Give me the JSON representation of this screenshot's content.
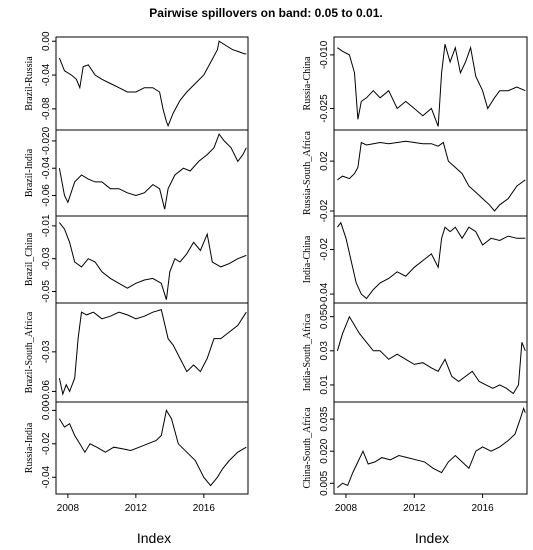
{
  "title": "Pairwise spillovers on band: 0.05 to 0.01.",
  "xlabel": "Index",
  "x_ticks": [
    2008,
    2012,
    2016
  ],
  "x_range": [
    2007.3,
    2018.6
  ],
  "chart_data": [
    {
      "type": "line",
      "ylabel": "Brazil-Russia",
      "ylim": [
        -0.105,
        0.005
      ],
      "yticks": [
        0.0,
        -0.04,
        -0.08
      ],
      "yticklabels": [
        "0.00",
        "-0.04",
        "-0.08"
      ],
      "x": [
        2007.5,
        2007.8,
        2008.2,
        2008.5,
        2008.7,
        2008.9,
        2009.2,
        2009.6,
        2010.0,
        2010.5,
        2011.0,
        2011.5,
        2012.0,
        2012.5,
        2013.0,
        2013.4,
        2013.6,
        2013.8,
        2013.9,
        2014.2,
        2014.6,
        2015.0,
        2015.5,
        2016.0,
        2016.4,
        2016.8,
        2016.9,
        2017.3,
        2017.7,
        2018.0,
        2018.4,
        2018.5
      ],
      "values": [
        -0.02,
        -0.035,
        -0.04,
        -0.045,
        -0.055,
        -0.03,
        -0.028,
        -0.04,
        -0.045,
        -0.05,
        -0.055,
        -0.06,
        -0.06,
        -0.055,
        -0.055,
        -0.06,
        -0.08,
        -0.095,
        -0.1,
        -0.085,
        -0.07,
        -0.06,
        -0.05,
        -0.04,
        -0.025,
        -0.01,
        0.0,
        -0.005,
        -0.01,
        -0.012,
        -0.015,
        -0.015
      ]
    },
    {
      "type": "line",
      "ylabel": "Brazil-India",
      "ylim": [
        -0.075,
        -0.012
      ],
      "yticks": [
        -0.02,
        -0.04,
        -0.06
      ],
      "yticklabels": [
        "-0.020",
        "-0.04",
        "-0.06"
      ],
      "x": [
        2007.5,
        2007.8,
        2008.0,
        2008.4,
        2008.8,
        2009.2,
        2009.6,
        2010.0,
        2010.5,
        2011.0,
        2011.5,
        2012.0,
        2012.5,
        2013.0,
        2013.4,
        2013.7,
        2013.9,
        2014.3,
        2014.8,
        2015.2,
        2015.7,
        2016.2,
        2016.6,
        2016.9,
        2017.2,
        2017.6,
        2018.0,
        2018.3,
        2018.5
      ],
      "values": [
        -0.04,
        -0.06,
        -0.065,
        -0.05,
        -0.045,
        -0.048,
        -0.05,
        -0.05,
        -0.055,
        -0.055,
        -0.058,
        -0.06,
        -0.058,
        -0.052,
        -0.055,
        -0.07,
        -0.055,
        -0.045,
        -0.04,
        -0.042,
        -0.035,
        -0.03,
        -0.025,
        -0.015,
        -0.02,
        -0.025,
        -0.035,
        -0.03,
        -0.025
      ]
    },
    {
      "type": "line",
      "ylabel": "Brazil_China",
      "ylim": [
        -0.057,
        -0.004
      ],
      "yticks": [
        -0.01,
        -0.03,
        -0.05
      ],
      "yticklabels": [
        "-0.01",
        "-0.03",
        "-0.05"
      ],
      "x": [
        2007.5,
        2007.8,
        2008.1,
        2008.4,
        2008.8,
        2009.2,
        2009.6,
        2010.0,
        2010.5,
        2011.0,
        2011.5,
        2012.0,
        2012.5,
        2013.0,
        2013.5,
        2013.8,
        2014.0,
        2014.3,
        2014.6,
        2015.0,
        2015.4,
        2015.8,
        2016.2,
        2016.5,
        2017.0,
        2017.5,
        2018.0,
        2018.5
      ],
      "values": [
        -0.008,
        -0.012,
        -0.02,
        -0.032,
        -0.035,
        -0.03,
        -0.032,
        -0.038,
        -0.042,
        -0.045,
        -0.048,
        -0.045,
        -0.043,
        -0.042,
        -0.045,
        -0.055,
        -0.038,
        -0.03,
        -0.032,
        -0.027,
        -0.02,
        -0.025,
        -0.015,
        -0.032,
        -0.035,
        -0.033,
        -0.03,
        -0.028
      ]
    },
    {
      "type": "line",
      "ylabel": "Brazil-South_Africa",
      "ylim": [
        -0.068,
        0.007
      ],
      "yticks": [
        -0.03,
        -0.06
      ],
      "yticklabels": [
        "-0.03",
        "-0.06"
      ],
      "x": [
        2007.5,
        2007.7,
        2007.9,
        2008.1,
        2008.4,
        2008.6,
        2008.8,
        2009.1,
        2009.5,
        2010.0,
        2010.5,
        2011.0,
        2011.5,
        2012.0,
        2012.5,
        2013.0,
        2013.5,
        2013.9,
        2014.2,
        2014.6,
        2015.0,
        2015.4,
        2015.8,
        2016.2,
        2016.6,
        2017.0,
        2017.5,
        2018.0,
        2018.5
      ],
      "values": [
        -0.05,
        -0.062,
        -0.055,
        -0.06,
        -0.05,
        -0.02,
        0.0,
        -0.002,
        0.0,
        -0.005,
        -0.003,
        0.0,
        -0.002,
        -0.005,
        -0.003,
        0.0,
        0.002,
        -0.02,
        -0.025,
        -0.035,
        -0.045,
        -0.04,
        -0.045,
        -0.035,
        -0.02,
        -0.02,
        -0.015,
        -0.01,
        0.0
      ]
    },
    {
      "type": "line",
      "ylabel": "Russia-India",
      "ylim": [
        -0.05,
        0.005
      ],
      "yticks": [
        0.0,
        -0.02,
        -0.04
      ],
      "yticklabels": [
        "0.00",
        "-0.02",
        "-0.04"
      ],
      "x": [
        2007.5,
        2007.8,
        2008.1,
        2008.4,
        2008.7,
        2009.0,
        2009.3,
        2009.7,
        2010.2,
        2010.7,
        2011.2,
        2011.7,
        2012.2,
        2012.7,
        2013.2,
        2013.5,
        2013.8,
        2014.1,
        2014.5,
        2015.0,
        2015.5,
        2016.0,
        2016.4,
        2016.8,
        2017.1,
        2017.5,
        2018.0,
        2018.5
      ],
      "values": [
        -0.005,
        -0.01,
        -0.008,
        -0.015,
        -0.02,
        -0.025,
        -0.02,
        -0.022,
        -0.025,
        -0.022,
        -0.023,
        -0.024,
        -0.022,
        -0.02,
        -0.018,
        -0.015,
        0.0,
        -0.005,
        -0.02,
        -0.025,
        -0.03,
        -0.04,
        -0.045,
        -0.04,
        -0.035,
        -0.03,
        -0.025,
        -0.022
      ]
    },
    {
      "type": "line",
      "ylabel": "Russia-China",
      "ylim": [
        -0.031,
        -0.005
      ],
      "yticks": [
        -0.01,
        -0.025
      ],
      "yticklabels": [
        "-0.010",
        "-0.025"
      ],
      "x": [
        2007.5,
        2007.8,
        2008.2,
        2008.5,
        2008.7,
        2008.9,
        2009.2,
        2009.6,
        2010.0,
        2010.5,
        2011.0,
        2011.5,
        2012.0,
        2012.5,
        2013.0,
        2013.4,
        2013.6,
        2013.8,
        2014.1,
        2014.4,
        2014.7,
        2015.0,
        2015.3,
        2015.6,
        2016.0,
        2016.3,
        2016.7,
        2017.0,
        2017.5,
        2018.0,
        2018.5
      ],
      "values": [
        -0.008,
        -0.009,
        -0.01,
        -0.015,
        -0.028,
        -0.023,
        -0.022,
        -0.02,
        -0.022,
        -0.02,
        -0.025,
        -0.023,
        -0.025,
        -0.027,
        -0.025,
        -0.03,
        -0.015,
        -0.007,
        -0.012,
        -0.008,
        -0.015,
        -0.012,
        -0.008,
        -0.016,
        -0.02,
        -0.025,
        -0.022,
        -0.02,
        -0.02,
        -0.019,
        -0.02
      ]
    },
    {
      "type": "line",
      "ylabel": "Russia-South_Africa",
      "ylim": [
        -0.024,
        0.045
      ],
      "yticks": [
        0.02,
        -0.02
      ],
      "yticklabels": [
        "0.02",
        "-0.02"
      ],
      "x": [
        2007.5,
        2007.8,
        2008.2,
        2008.5,
        2008.7,
        2008.9,
        2009.2,
        2009.6,
        2010.0,
        2010.5,
        2011.0,
        2011.5,
        2012.0,
        2012.5,
        2013.0,
        2013.4,
        2013.7,
        2014.0,
        2014.4,
        2014.8,
        2015.2,
        2015.6,
        2016.0,
        2016.4,
        2016.7,
        2017.0,
        2017.5,
        2018.0,
        2018.5
      ],
      "values": [
        0.005,
        0.008,
        0.006,
        0.01,
        0.015,
        0.035,
        0.033,
        0.034,
        0.035,
        0.034,
        0.035,
        0.036,
        0.035,
        0.034,
        0.034,
        0.032,
        0.035,
        0.02,
        0.015,
        0.01,
        0.0,
        -0.005,
        -0.01,
        -0.015,
        -0.02,
        -0.015,
        -0.01,
        0.0,
        0.005
      ]
    },
    {
      "type": "line",
      "ylabel": "India-China",
      "ylim": [
        -0.044,
        -0.005
      ],
      "yticks": [
        -0.02,
        -0.04
      ],
      "yticklabels": [
        "-0.02",
        "-0.04"
      ],
      "x": [
        2007.5,
        2007.7,
        2008.0,
        2008.3,
        2008.6,
        2008.9,
        2009.2,
        2009.6,
        2010.0,
        2010.5,
        2011.0,
        2011.5,
        2012.0,
        2012.5,
        2013.0,
        2013.4,
        2013.6,
        2013.8,
        2014.1,
        2014.4,
        2014.8,
        2015.2,
        2015.6,
        2016.0,
        2016.5,
        2017.0,
        2017.5,
        2018.0,
        2018.5
      ],
      "values": [
        -0.01,
        -0.008,
        -0.015,
        -0.025,
        -0.035,
        -0.04,
        -0.042,
        -0.038,
        -0.035,
        -0.033,
        -0.03,
        -0.032,
        -0.028,
        -0.025,
        -0.022,
        -0.028,
        -0.015,
        -0.01,
        -0.012,
        -0.01,
        -0.015,
        -0.01,
        -0.012,
        -0.018,
        -0.015,
        -0.016,
        -0.014,
        -0.015,
        -0.015
      ]
    },
    {
      "type": "line",
      "ylabel": "India-South_Africa",
      "ylim": [
        0.0,
        0.058
      ],
      "yticks": [
        0.05,
        0.03,
        0.01
      ],
      "yticklabels": [
        "0.050",
        "0.03",
        "0.01"
      ],
      "x": [
        2007.5,
        2007.8,
        2008.0,
        2008.2,
        2008.5,
        2008.8,
        2009.2,
        2009.6,
        2010.0,
        2010.5,
        2011.0,
        2011.5,
        2012.0,
        2012.5,
        2013.0,
        2013.4,
        2013.8,
        2014.2,
        2014.6,
        2015.0,
        2015.4,
        2015.8,
        2016.2,
        2016.6,
        2017.0,
        2017.4,
        2017.8,
        2018.1,
        2018.3,
        2018.5
      ],
      "values": [
        0.03,
        0.04,
        0.045,
        0.05,
        0.045,
        0.04,
        0.035,
        0.03,
        0.03,
        0.025,
        0.028,
        0.025,
        0.022,
        0.023,
        0.02,
        0.018,
        0.025,
        0.015,
        0.012,
        0.015,
        0.018,
        0.012,
        0.01,
        0.008,
        0.01,
        0.008,
        0.005,
        0.01,
        0.035,
        0.03
      ]
    },
    {
      "type": "line",
      "ylabel": "China-South_Africa",
      "ylim": [
        0.0,
        0.043
      ],
      "yticks": [
        0.035,
        0.02,
        0.005
      ],
      "yticklabels": [
        "0.035",
        "0.020",
        "0.005"
      ],
      "x": [
        2007.5,
        2007.8,
        2008.1,
        2008.4,
        2008.7,
        2009.0,
        2009.3,
        2009.7,
        2010.1,
        2010.6,
        2011.1,
        2011.6,
        2012.1,
        2012.6,
        2013.1,
        2013.6,
        2014.0,
        2014.4,
        2014.8,
        2015.2,
        2015.6,
        2016.0,
        2016.5,
        2017.0,
        2017.5,
        2017.9,
        2018.2,
        2018.4,
        2018.5
      ],
      "values": [
        0.003,
        0.005,
        0.004,
        0.01,
        0.015,
        0.02,
        0.014,
        0.015,
        0.017,
        0.016,
        0.018,
        0.017,
        0.016,
        0.015,
        0.012,
        0.01,
        0.015,
        0.018,
        0.015,
        0.012,
        0.02,
        0.022,
        0.02,
        0.022,
        0.025,
        0.028,
        0.035,
        0.04,
        0.038
      ]
    }
  ]
}
